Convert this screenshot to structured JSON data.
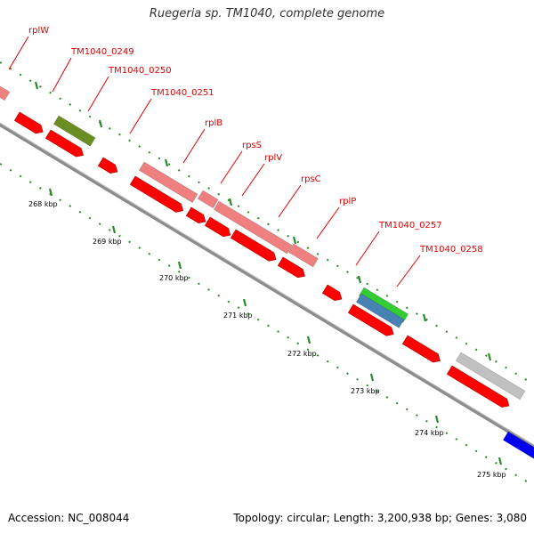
{
  "title": "Ruegeria sp. TM1040, complete genome",
  "footer": {
    "accession": "Accession: NC_008044",
    "summary": "Topology: circular; Length: 3,200,938 bp; Genes: 3,080"
  },
  "colors": {
    "backbone": "#8c8c8c",
    "cds": "#ff0000",
    "gene_pink": "#f08080",
    "gene_olive": "#6b8e23",
    "gene_green": "#33cc33",
    "gene_steel": "#4682b4",
    "gene_gray": "#c0c0c0",
    "gene_blue": "#0000ee",
    "tick": "#008000",
    "label": "#e00000"
  },
  "gene_labels": [
    "rplW",
    "TM1040_0249",
    "TM1040_0250",
    "TM1040_0251",
    "rplB",
    "rpsS",
    "rplV",
    "rpsC",
    "rplP",
    "TM1040_0257",
    "TM1040_0258"
  ],
  "kbp_ticks": [
    "268 kbp",
    "269 kbp",
    "270 kbp",
    "271 kbp",
    "272 kbp",
    "273 kbp",
    "274 kbp",
    "275 kbp"
  ]
}
